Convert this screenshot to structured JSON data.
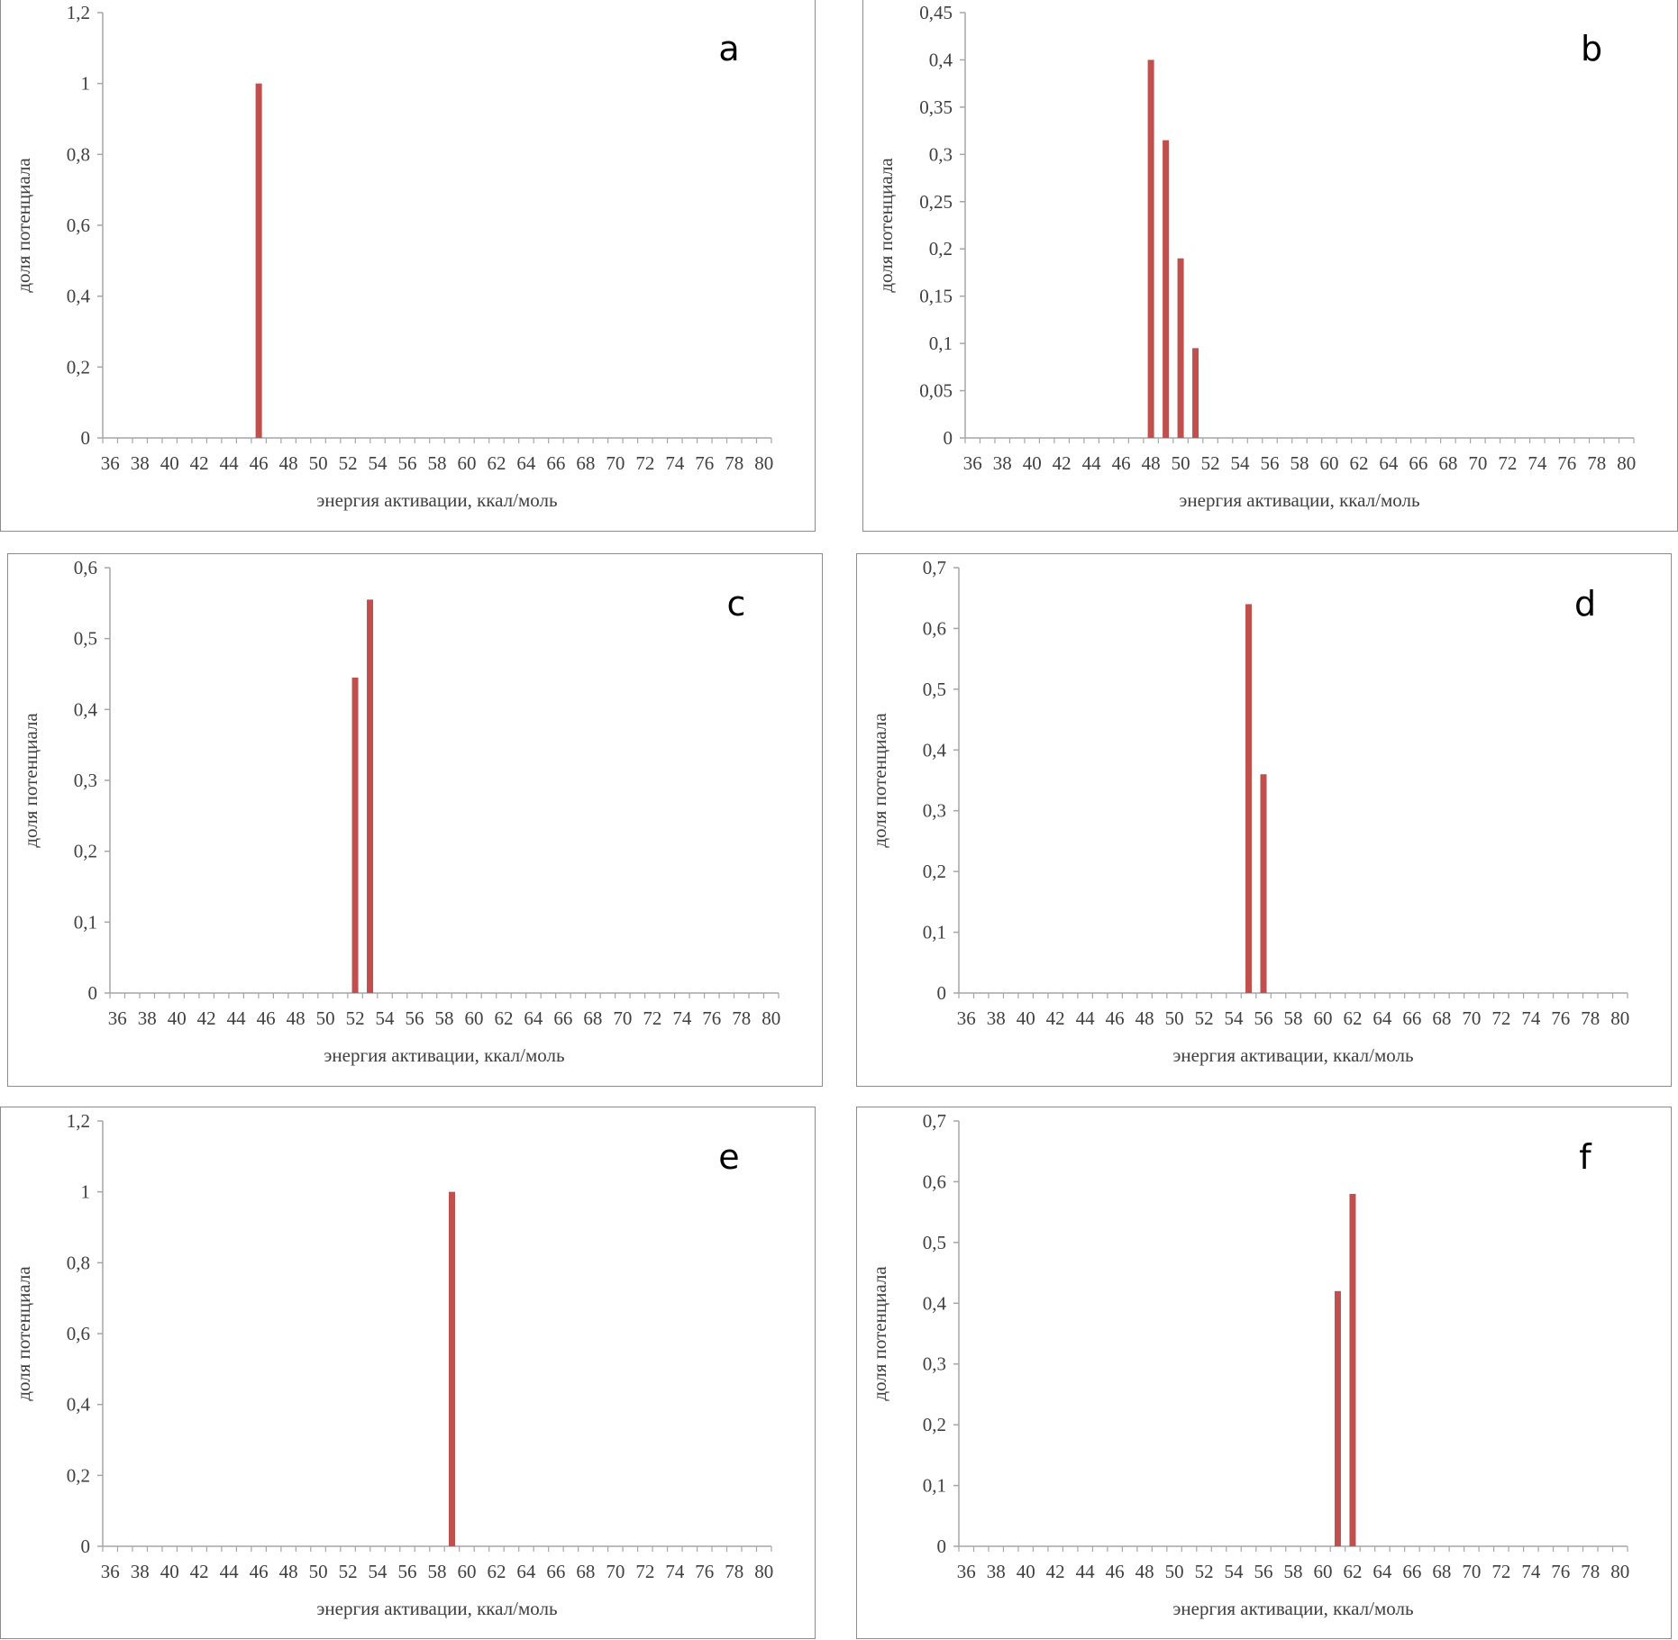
{
  "style": {
    "bar_color": "#c0504d",
    "axis_color": "#a6a6a6",
    "frame_color": "#8c8c8c"
  },
  "shared": {
    "xlabel": "энергия активации, ккал/моль",
    "ylabel": "доля потенциала"
  },
  "chart_data": [
    {
      "type": "bar",
      "letter": "a",
      "x_categories": [
        36,
        37,
        38,
        39,
        40,
        41,
        42,
        43,
        44,
        45,
        46,
        47,
        48,
        49,
        50,
        51,
        52,
        53,
        54,
        55,
        56,
        57,
        58,
        59,
        60,
        61,
        62,
        63,
        64,
        65,
        66,
        67,
        68,
        69,
        70,
        71,
        72,
        73,
        74,
        75,
        76,
        77,
        78,
        79,
        80
      ],
      "x_tick_labels": [
        "36",
        "38",
        "40",
        "42",
        "44",
        "46",
        "48",
        "50",
        "52",
        "54",
        "56",
        "58",
        "60",
        "62",
        "64",
        "66",
        "68",
        "70",
        "72",
        "74",
        "76",
        "78",
        "80"
      ],
      "bars": [
        {
          "x": 46,
          "y": 1.0
        }
      ],
      "ylim": [
        0,
        1.2
      ],
      "y_ticks": [
        0,
        0.2,
        0.4,
        0.6,
        0.8,
        1,
        1.2
      ],
      "y_tick_labels": [
        "0",
        "0,2",
        "0,4",
        "0,6",
        "0,8",
        "1",
        "1,2"
      ],
      "xlabel": "энергия активации, ккал/моль",
      "ylabel": "доля потенциала"
    },
    {
      "type": "bar",
      "letter": "b",
      "x_categories": [
        36,
        37,
        38,
        39,
        40,
        41,
        42,
        43,
        44,
        45,
        46,
        47,
        48,
        49,
        50,
        51,
        52,
        53,
        54,
        55,
        56,
        57,
        58,
        59,
        60,
        61,
        62,
        63,
        64,
        65,
        66,
        67,
        68,
        69,
        70,
        71,
        72,
        73,
        74,
        75,
        76,
        77,
        78,
        79,
        80
      ],
      "x_tick_labels": [
        "36",
        "38",
        "40",
        "42",
        "44",
        "46",
        "48",
        "50",
        "52",
        "54",
        "56",
        "58",
        "60",
        "62",
        "64",
        "66",
        "68",
        "70",
        "72",
        "74",
        "76",
        "78",
        "80"
      ],
      "bars": [
        {
          "x": 48,
          "y": 0.4
        },
        {
          "x": 49,
          "y": 0.315
        },
        {
          "x": 50,
          "y": 0.19
        },
        {
          "x": 51,
          "y": 0.095
        }
      ],
      "ylim": [
        0,
        0.45
      ],
      "y_ticks": [
        0,
        0.05,
        0.1,
        0.15,
        0.2,
        0.25,
        0.3,
        0.35,
        0.4,
        0.45
      ],
      "y_tick_labels": [
        "0",
        "0,05",
        "0,1",
        "0,15",
        "0,2",
        "0,25",
        "0,3",
        "0,35",
        "0,4",
        "0,45"
      ],
      "xlabel": "энергия активации, ккал/моль",
      "ylabel": "доля потенциала"
    },
    {
      "type": "bar",
      "letter": "c",
      "x_categories": [
        36,
        37,
        38,
        39,
        40,
        41,
        42,
        43,
        44,
        45,
        46,
        47,
        48,
        49,
        50,
        51,
        52,
        53,
        54,
        55,
        56,
        57,
        58,
        59,
        60,
        61,
        62,
        63,
        64,
        65,
        66,
        67,
        68,
        69,
        70,
        71,
        72,
        73,
        74,
        75,
        76,
        77,
        78,
        79,
        80
      ],
      "x_tick_labels": [
        "36",
        "38",
        "40",
        "42",
        "44",
        "46",
        "48",
        "50",
        "52",
        "54",
        "56",
        "58",
        "60",
        "62",
        "64",
        "66",
        "68",
        "70",
        "72",
        "74",
        "76",
        "78",
        "80"
      ],
      "bars": [
        {
          "x": 52,
          "y": 0.445
        },
        {
          "x": 53,
          "y": 0.555
        }
      ],
      "ylim": [
        0,
        0.6
      ],
      "y_ticks": [
        0,
        0.1,
        0.2,
        0.3,
        0.4,
        0.5,
        0.6
      ],
      "y_tick_labels": [
        "0",
        "0,1",
        "0,2",
        "0,3",
        "0,4",
        "0,5",
        "0,6"
      ],
      "xlabel": "энергия активации, ккал/моль",
      "ylabel": "доля потенциала"
    },
    {
      "type": "bar",
      "letter": "d",
      "x_categories": [
        36,
        37,
        38,
        39,
        40,
        41,
        42,
        43,
        44,
        45,
        46,
        47,
        48,
        49,
        50,
        51,
        52,
        53,
        54,
        55,
        56,
        57,
        58,
        59,
        60,
        61,
        62,
        63,
        64,
        65,
        66,
        67,
        68,
        69,
        70,
        71,
        72,
        73,
        74,
        75,
        76,
        77,
        78,
        79,
        80
      ],
      "x_tick_labels": [
        "36",
        "38",
        "40",
        "42",
        "44",
        "46",
        "48",
        "50",
        "52",
        "54",
        "56",
        "58",
        "60",
        "62",
        "64",
        "66",
        "68",
        "70",
        "72",
        "74",
        "76",
        "78",
        "80"
      ],
      "bars": [
        {
          "x": 55,
          "y": 0.64
        },
        {
          "x": 56,
          "y": 0.36
        }
      ],
      "ylim": [
        0,
        0.7
      ],
      "y_ticks": [
        0,
        0.1,
        0.2,
        0.3,
        0.4,
        0.5,
        0.6,
        0.7
      ],
      "y_tick_labels": [
        "0",
        "0,1",
        "0,2",
        "0,3",
        "0,4",
        "0,5",
        "0,6",
        "0,7"
      ],
      "xlabel": "энергия активации, ккал/моль",
      "ylabel": "доля потенциала"
    },
    {
      "type": "bar",
      "letter": "e",
      "x_categories": [
        36,
        37,
        38,
        39,
        40,
        41,
        42,
        43,
        44,
        45,
        46,
        47,
        48,
        49,
        50,
        51,
        52,
        53,
        54,
        55,
        56,
        57,
        58,
        59,
        60,
        61,
        62,
        63,
        64,
        65,
        66,
        67,
        68,
        69,
        70,
        71,
        72,
        73,
        74,
        75,
        76,
        77,
        78,
        79,
        80
      ],
      "x_tick_labels": [
        "36",
        "38",
        "40",
        "42",
        "44",
        "46",
        "48",
        "50",
        "52",
        "54",
        "56",
        "58",
        "60",
        "62",
        "64",
        "66",
        "68",
        "70",
        "72",
        "74",
        "76",
        "78",
        "80"
      ],
      "bars": [
        {
          "x": 59,
          "y": 1.0
        }
      ],
      "ylim": [
        0,
        1.2
      ],
      "y_ticks": [
        0,
        0.2,
        0.4,
        0.6,
        0.8,
        1,
        1.2
      ],
      "y_tick_labels": [
        "0",
        "0,2",
        "0,4",
        "0,6",
        "0,8",
        "1",
        "1,2"
      ],
      "xlabel": "энергия активации, ккал/моль",
      "ylabel": "доля потенциала"
    },
    {
      "type": "bar",
      "letter": "f",
      "x_categories": [
        36,
        37,
        38,
        39,
        40,
        41,
        42,
        43,
        44,
        45,
        46,
        47,
        48,
        49,
        50,
        51,
        52,
        53,
        54,
        55,
        56,
        57,
        58,
        59,
        60,
        61,
        62,
        63,
        64,
        65,
        66,
        67,
        68,
        69,
        70,
        71,
        72,
        73,
        74,
        75,
        76,
        77,
        78,
        79,
        80
      ],
      "x_tick_labels": [
        "36",
        "38",
        "40",
        "42",
        "44",
        "46",
        "48",
        "50",
        "52",
        "54",
        "56",
        "58",
        "60",
        "62",
        "64",
        "66",
        "68",
        "70",
        "72",
        "74",
        "76",
        "78",
        "80"
      ],
      "bars": [
        {
          "x": 61,
          "y": 0.42
        },
        {
          "x": 62,
          "y": 0.58
        }
      ],
      "ylim": [
        0,
        0.7
      ],
      "y_ticks": [
        0,
        0.1,
        0.2,
        0.3,
        0.4,
        0.5,
        0.6,
        0.7
      ],
      "y_tick_labels": [
        "0",
        "0,1",
        "0,2",
        "0,3",
        "0,4",
        "0,5",
        "0,6",
        "0,7"
      ],
      "xlabel": "энергия активации, ккал/моль",
      "ylabel": "доля потенциала"
    }
  ]
}
